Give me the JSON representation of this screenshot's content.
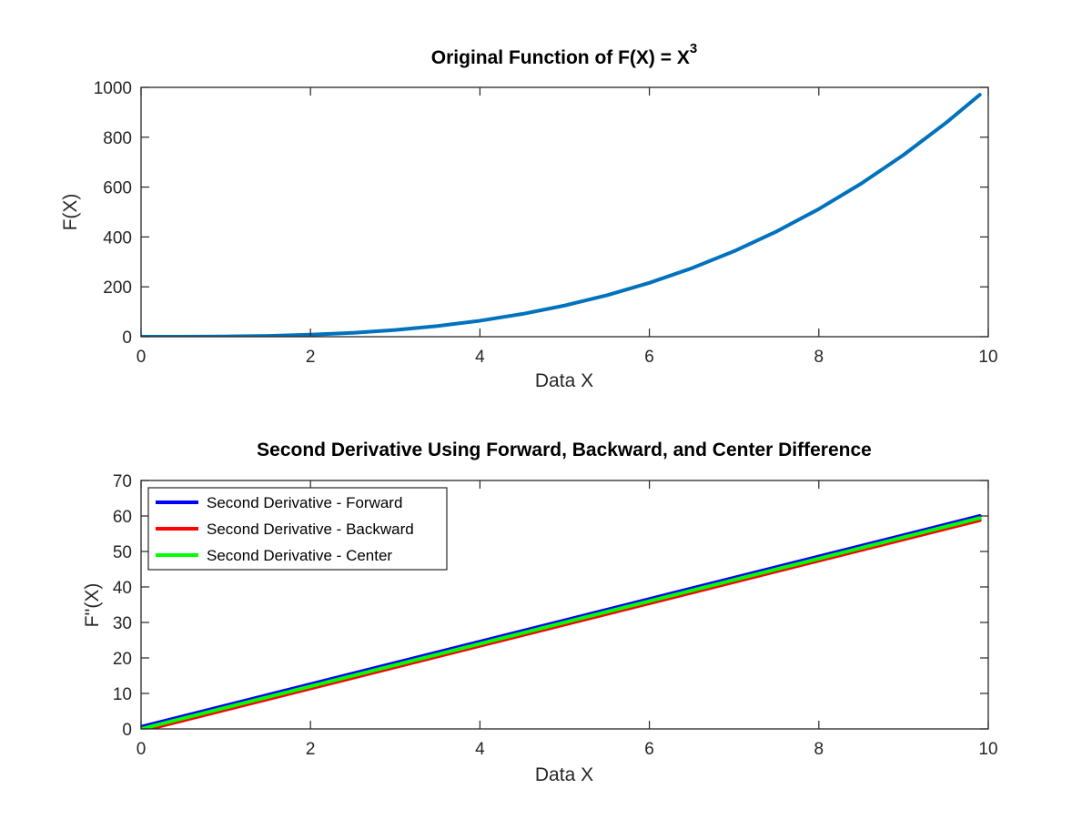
{
  "chart_data": [
    {
      "type": "line",
      "title": "Original Function of F(X) = X",
      "title_superscript": "3",
      "xlabel": "Data X",
      "ylabel": "F(X)",
      "xlim": [
        0,
        10
      ],
      "ylim": [
        0,
        1000
      ],
      "xticks": [
        0,
        2,
        4,
        6,
        8,
        10
      ],
      "yticks": [
        0,
        200,
        400,
        600,
        800,
        1000
      ],
      "grid": false,
      "series": [
        {
          "color": "#0072bd",
          "x": [
            0,
            0.5,
            1,
            1.5,
            2,
            2.5,
            3,
            3.5,
            4,
            4.5,
            5,
            5.5,
            6,
            6.5,
            7,
            7.5,
            8,
            8.5,
            9,
            9.5,
            9.9
          ],
          "y": [
            0,
            0.125,
            1,
            3.375,
            8,
            15.625,
            27,
            42.875,
            64,
            91.125,
            125,
            166.375,
            216,
            274.625,
            343,
            421.875,
            512,
            614.125,
            729,
            857.375,
            970.3
          ]
        }
      ]
    },
    {
      "type": "line",
      "title": "Second Derivative Using Forward, Backward, and Center Difference",
      "xlabel": "Data X",
      "ylabel": "F''(X)",
      "xlim": [
        0,
        10
      ],
      "ylim": [
        0,
        70
      ],
      "xticks": [
        0,
        2,
        4,
        6,
        8,
        10
      ],
      "yticks": [
        0,
        10,
        20,
        30,
        40,
        50,
        60,
        70
      ],
      "grid": false,
      "legend_position": "top-left",
      "series": [
        {
          "name": "Second Derivative - Forward",
          "color": "#0000ff",
          "x": [
            0,
            9.9
          ],
          "y": [
            0.6,
            60.0
          ]
        },
        {
          "name": "Second Derivative - Backward",
          "color": "#ff0000",
          "x": [
            0,
            9.9
          ],
          "y": [
            -0.6,
            58.8
          ]
        },
        {
          "name": "Second Derivative - Center",
          "color": "#00ff00",
          "x": [
            0,
            9.9
          ],
          "y": [
            0,
            59.4
          ]
        }
      ]
    }
  ]
}
